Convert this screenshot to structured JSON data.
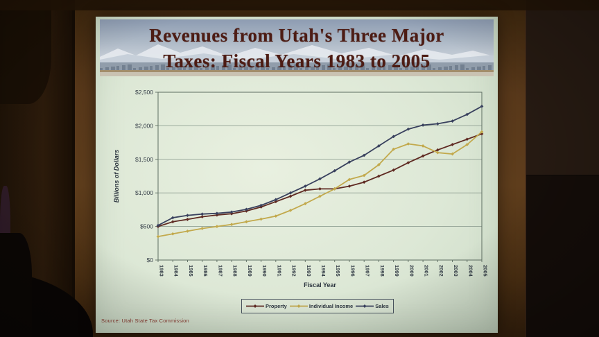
{
  "slide": {
    "title_line1": "Revenues from Utah's Three Major",
    "title_line2": "Taxes: Fiscal Years 1983 to 2005",
    "source": "Source: Utah State Tax Commission"
  },
  "chart_data": {
    "type": "line",
    "title": "Revenues from Utah's Three Major Taxes: Fiscal Years 1983 to 2005",
    "xlabel": "Fiscal Year",
    "ylabel": "Billions of Dollars",
    "x": [
      "1983",
      "1984",
      "1985",
      "1986",
      "1987",
      "1988",
      "1989",
      "1990",
      "1991",
      "1992",
      "1993",
      "1994",
      "1995",
      "1996",
      "1997",
      "1998",
      "1999",
      "2000",
      "2001",
      "2002",
      "2003",
      "2004",
      "2005"
    ],
    "ylim": [
      0,
      2500
    ],
    "y_ticks": [
      "$0",
      "$500",
      "$1,000",
      "$1,500",
      "$2,000",
      "$2,500"
    ],
    "grid": true,
    "legend_position": "bottom",
    "series": [
      {
        "name": "Property",
        "color": "#5f2a22",
        "marker": "diamond",
        "values": [
          500,
          570,
          605,
          645,
          670,
          690,
          730,
          790,
          870,
          950,
          1040,
          1060,
          1060,
          1100,
          1160,
          1250,
          1340,
          1450,
          1550,
          1640,
          1720,
          1800,
          1880
        ]
      },
      {
        "name": "Individual Income",
        "color": "#c2a94c",
        "marker": "diamond",
        "values": [
          350,
          390,
          430,
          470,
          500,
          530,
          570,
          610,
          655,
          740,
          840,
          950,
          1060,
          1200,
          1260,
          1420,
          1650,
          1730,
          1700,
          1600,
          1580,
          1720,
          1910
        ]
      },
      {
        "name": "Sales",
        "color": "#39415e",
        "marker": "diamond",
        "values": [
          515,
          630,
          665,
          685,
          695,
          715,
          755,
          815,
          900,
          1000,
          1100,
          1210,
          1330,
          1460,
          1560,
          1700,
          1840,
          1950,
          2010,
          2030,
          2070,
          2170,
          2290
        ]
      }
    ],
    "source": "Source: Utah State Tax Commission"
  }
}
